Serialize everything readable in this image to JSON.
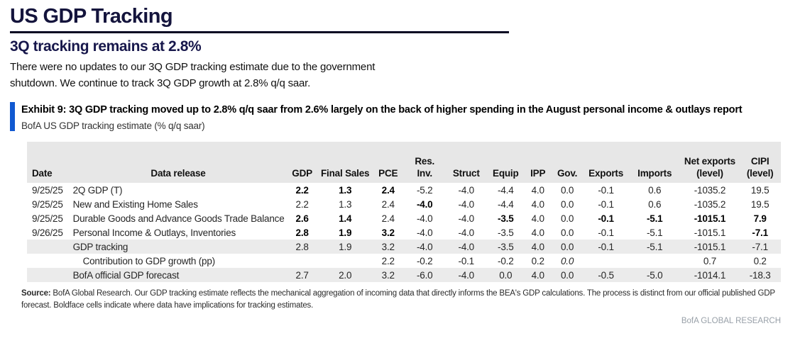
{
  "header": {
    "title": "US GDP Tracking",
    "subtitle": "3Q tracking remains at 2.8%"
  },
  "intro": {
    "lines": [
      "There were no updates to our 3Q GDP tracking estimate due to the government",
      "shutdown. We continue to track 3Q GDP growth at 2.8% q/q saar."
    ]
  },
  "exhibit": {
    "heading": "Exhibit 9: 3Q GDP tracking moved up to 2.8% q/q saar from 2.6% largely on the back of higher spending in the August personal income & outlays report",
    "subheading": "BofA US GDP tracking estimate (% q/q saar)"
  },
  "colors": {
    "accent_blue_bar": "#1159d1",
    "title_navy": "#14143c",
    "subtitle_navy": "#17174b",
    "header_gray": "#e7e7e7",
    "row_shade_gray": "#ebebeb",
    "brand_gray": "#98a0a8"
  },
  "table": {
    "columns": [
      {
        "key": "date",
        "label": "Date"
      },
      {
        "key": "release",
        "label": "Data release"
      },
      {
        "key": "gdp",
        "label": "GDP"
      },
      {
        "key": "final_sales",
        "label": "Final Sales"
      },
      {
        "key": "pce",
        "label": "PCE"
      },
      {
        "key": "res_inv",
        "label": "Res. Inv."
      },
      {
        "key": "struct",
        "label": "Struct"
      },
      {
        "key": "equip",
        "label": "Equip"
      },
      {
        "key": "ipp",
        "label": "IPP"
      },
      {
        "key": "gov",
        "label": "Gov."
      },
      {
        "key": "exports",
        "label": "Exports"
      },
      {
        "key": "imports",
        "label": "Imports"
      },
      {
        "key": "net_exports",
        "label": "Net exports (level)"
      },
      {
        "key": "cipi",
        "label": "CIPI (level)"
      }
    ],
    "rows": [
      {
        "date": "9/25/25",
        "release": "2Q GDP (T)",
        "shaded": false,
        "indent": false,
        "cells": [
          {
            "v": "2.2",
            "b": 1
          },
          {
            "v": "1.3",
            "b": 1
          },
          {
            "v": "2.4",
            "b": 1
          },
          {
            "v": "-5.2"
          },
          {
            "v": "-4.0"
          },
          {
            "v": "-4.4"
          },
          {
            "v": "4.0"
          },
          {
            "v": "0.0"
          },
          {
            "v": "-0.1"
          },
          {
            "v": "0.6"
          },
          {
            "v": "-1035.2"
          },
          {
            "v": "19.5"
          }
        ]
      },
      {
        "date": "9/25/25",
        "release": "New and Existing Home Sales",
        "shaded": false,
        "indent": false,
        "cells": [
          {
            "v": "2.2"
          },
          {
            "v": "1.3"
          },
          {
            "v": "2.4"
          },
          {
            "v": "-4.0",
            "b": 1
          },
          {
            "v": "-4.0"
          },
          {
            "v": "-4.4"
          },
          {
            "v": "4.0"
          },
          {
            "v": "0.0"
          },
          {
            "v": "-0.1"
          },
          {
            "v": "0.6"
          },
          {
            "v": "-1035.2"
          },
          {
            "v": "19.5"
          }
        ]
      },
      {
        "date": "9/25/25",
        "release": "Durable Goods and Advance Goods Trade Balance",
        "shaded": false,
        "indent": false,
        "cells": [
          {
            "v": "2.6",
            "b": 1
          },
          {
            "v": "1.4",
            "b": 1
          },
          {
            "v": "2.4"
          },
          {
            "v": "-4.0"
          },
          {
            "v": "-4.0"
          },
          {
            "v": "-3.5",
            "b": 1
          },
          {
            "v": "4.0"
          },
          {
            "v": "0.0"
          },
          {
            "v": "-0.1",
            "b": 1
          },
          {
            "v": "-5.1",
            "b": 1
          },
          {
            "v": "-1015.1",
            "b": 1
          },
          {
            "v": "7.9",
            "b": 1
          }
        ]
      },
      {
        "date": "9/26/25",
        "release": "Personal Income & Outlays, Inventories",
        "shaded": false,
        "indent": false,
        "cells": [
          {
            "v": "2.8",
            "b": 1
          },
          {
            "v": "1.9",
            "b": 1
          },
          {
            "v": "3.2",
            "b": 1
          },
          {
            "v": "-4.0"
          },
          {
            "v": "-4.0"
          },
          {
            "v": "-3.5"
          },
          {
            "v": "4.0"
          },
          {
            "v": "0.0"
          },
          {
            "v": "-0.1"
          },
          {
            "v": "-5.1"
          },
          {
            "v": "-1015.1"
          },
          {
            "v": "-7.1",
            "b": 1
          }
        ]
      },
      {
        "date": "",
        "release": "GDP tracking",
        "shaded": true,
        "indent": false,
        "cells": [
          {
            "v": "2.8"
          },
          {
            "v": "1.9"
          },
          {
            "v": "3.2"
          },
          {
            "v": "-4.0"
          },
          {
            "v": "-4.0"
          },
          {
            "v": "-3.5"
          },
          {
            "v": "4.0"
          },
          {
            "v": "0.0"
          },
          {
            "v": "-0.1"
          },
          {
            "v": "-5.1"
          },
          {
            "v": "-1015.1"
          },
          {
            "v": "-7.1"
          }
        ]
      },
      {
        "date": "",
        "release": "Contribution to GDP growth (pp)",
        "shaded": false,
        "indent": true,
        "cells": [
          {
            "v": ""
          },
          {
            "v": ""
          },
          {
            "v": "2.2"
          },
          {
            "v": "-0.2"
          },
          {
            "v": "-0.1"
          },
          {
            "v": "-0.2"
          },
          {
            "v": "0.2"
          },
          {
            "v": "0.0",
            "i": 1
          },
          {
            "v": ""
          },
          {
            "v": ""
          },
          {
            "v": "0.7"
          },
          {
            "v": "0.2"
          }
        ]
      },
      {
        "date": "",
        "release": "BofA official GDP forecast",
        "shaded": true,
        "indent": false,
        "cells": [
          {
            "v": "2.7"
          },
          {
            "v": "2.0"
          },
          {
            "v": "3.2"
          },
          {
            "v": "-6.0"
          },
          {
            "v": "-4.0"
          },
          {
            "v": "0.0"
          },
          {
            "v": "4.0"
          },
          {
            "v": "0.0"
          },
          {
            "v": "-0.5"
          },
          {
            "v": "-5.0"
          },
          {
            "v": "-1014.1"
          },
          {
            "v": "-18.3"
          }
        ]
      }
    ]
  },
  "source": {
    "label": "Source:",
    "text": " BofA Global Research. Our GDP tracking estimate reflects the mechanical aggregation of incoming data that directly informs the BEA's GDP calculations. The process is distinct from our official published GDP forecast. Boldface cells indicate where data have implications for tracking estimates."
  },
  "footer": {
    "brand": "BofA GLOBAL RESEARCH"
  }
}
